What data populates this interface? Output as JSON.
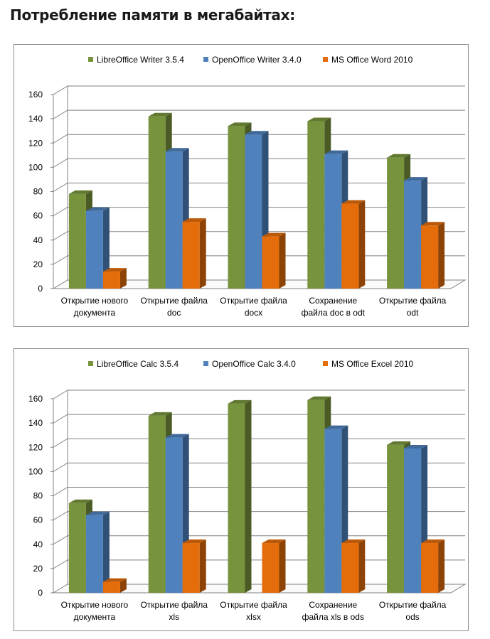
{
  "title": "Потребление памяти в мегабайтах:",
  "colors": {
    "green": "#77933c",
    "blue": "#4f81bd",
    "orange": "#e46c0a",
    "gridline": "#808080"
  },
  "chart_data": [
    {
      "type": "bar",
      "style": "3d-clustered-column",
      "legend_position": "top",
      "grid": true,
      "ylim": [
        0,
        160
      ],
      "yticks": [
        "0",
        "20",
        "40",
        "60",
        "80",
        "100",
        "120",
        "140",
        "160"
      ],
      "categories": [
        [
          "Открытие нового",
          "документа"
        ],
        [
          "Открытие файла",
          "doc"
        ],
        [
          "Открытие файла",
          "docx"
        ],
        [
          "Сохранение",
          "файла doc в odt"
        ],
        [
          "Открытие файла",
          "odt"
        ]
      ],
      "series": [
        {
          "name": "LibreOffice Writer 3.5.4",
          "color": "#77933c",
          "values": [
            78,
            142,
            134,
            138,
            108
          ]
        },
        {
          "name": "OpenOffice Writer 3.4.0",
          "color": "#4f81bd",
          "values": [
            64,
            113,
            127,
            111,
            89
          ]
        },
        {
          "name": "MS Office Word 2010",
          "color": "#e46c0a",
          "values": [
            14,
            55,
            43,
            70,
            52
          ]
        }
      ]
    },
    {
      "type": "bar",
      "style": "3d-clustered-column",
      "legend_position": "top",
      "grid": true,
      "ylim": [
        0,
        160
      ],
      "yticks": [
        "0",
        "20",
        "40",
        "60",
        "80",
        "100",
        "120",
        "140",
        "160"
      ],
      "categories": [
        [
          "Открытие нового",
          "документа"
        ],
        [
          "Открытие файла",
          "xls"
        ],
        [
          "Открытие файла",
          "xlsx"
        ],
        [
          "Сохранение",
          "файла xls в ods"
        ],
        [
          "Открытие файла",
          "ods"
        ]
      ],
      "series": [
        {
          "name": "LibreOffice Calc 3.5.4",
          "color": "#77933c",
          "values": [
            74,
            146,
            156,
            159,
            122
          ]
        },
        {
          "name": "OpenOffice Calc 3.4.0",
          "color": "#4f81bd",
          "values": [
            64,
            128,
            null,
            135,
            119
          ]
        },
        {
          "name": "MS Office Excel 2010",
          "color": "#e46c0a",
          "values": [
            9,
            41,
            41,
            41,
            41
          ]
        }
      ]
    }
  ]
}
